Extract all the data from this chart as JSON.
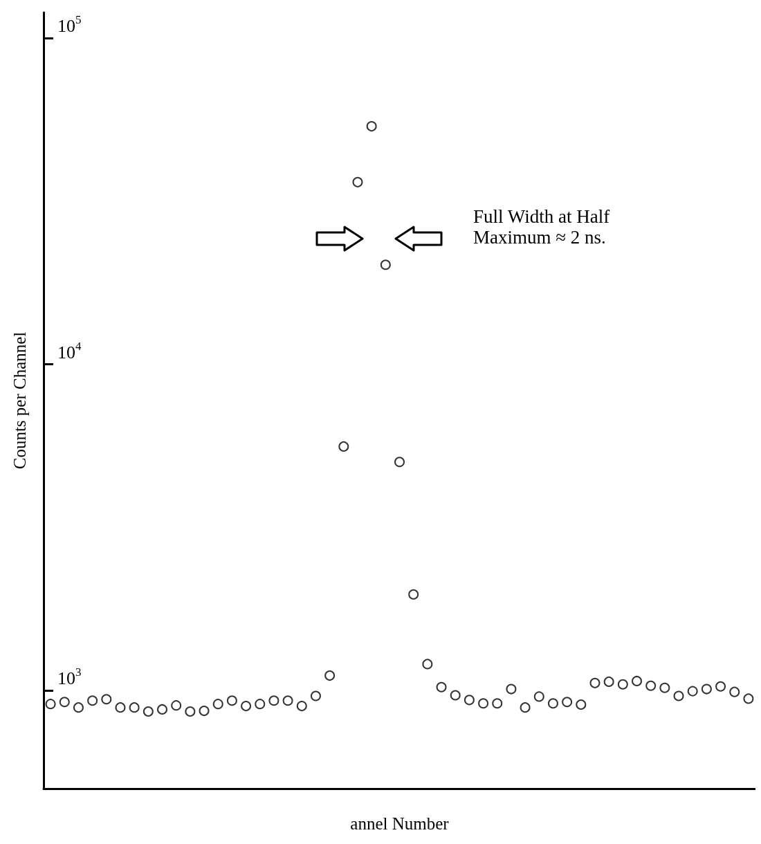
{
  "chart_data": {
    "type": "scatter",
    "xlabel": "annel Number",
    "ylabel": "Counts per Channel",
    "annotations": [
      "Full Width at Half\nMaximum ≈ 2 ns."
    ],
    "categories": [
      null,
      null,
      null,
      null,
      null,
      null,
      null,
      null,
      null,
      null,
      null,
      null,
      null,
      null,
      null,
      null,
      null,
      null,
      null,
      null,
      null,
      null,
      null,
      null,
      null,
      null,
      null,
      null,
      null,
      null,
      null,
      null,
      null,
      null,
      null,
      null,
      null,
      null,
      null,
      null,
      null,
      null,
      null,
      null,
      null,
      null,
      null,
      null,
      null,
      null,
      null
    ],
    "values": [
      909,
      922,
      887,
      931,
      940,
      887,
      887,
      862,
      875,
      900,
      862,
      866,
      909,
      931,
      896,
      909,
      931,
      931,
      896,
      962,
      1111,
      5600,
      36200,
      53700,
      20200,
      5020,
      1970,
      1205,
      1024,
      967,
      935,
      913,
      913,
      1010,
      887,
      958,
      913,
      922,
      905,
      1054,
      1064,
      1044,
      1069,
      1034,
      1019,
      962,
      995,
      1010,
      1029,
      990,
      944
    ],
    "color": "#000000",
    "marker": "circle",
    "log": "y",
    "ylim": [
      500,
      120000
    ],
    "yticks": [
      {
        "value": 1000,
        "label": "10$^{3}$"
      },
      {
        "value": 10000,
        "label": "10$^{4}$"
      },
      {
        "value": 100000,
        "label": "10$^{5}$"
      }
    ],
    "grid": false
  }
}
